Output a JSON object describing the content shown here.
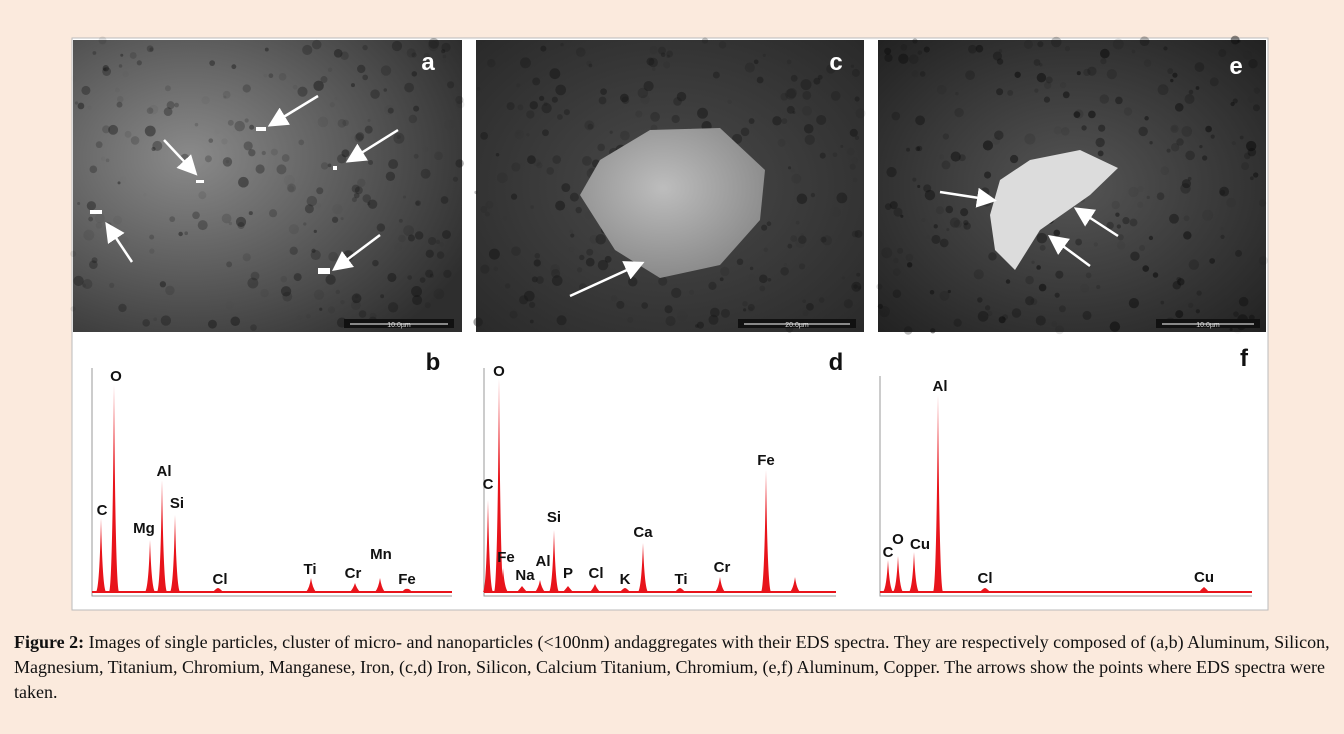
{
  "figure": {
    "panels": [
      {
        "image_label": "a",
        "scale_bar": "10.0µm",
        "spectrum_label": "b",
        "peaks": [
          "O",
          "C",
          "Mg",
          "Al",
          "Si",
          "Cl",
          "Ti",
          "Cr",
          "Mn",
          "Fe"
        ]
      },
      {
        "image_label": "c",
        "scale_bar": "20.0µm",
        "spectrum_label": "d",
        "peaks": [
          "O",
          "C",
          "Fe",
          "Na",
          "Al",
          "Si",
          "P",
          "Cl",
          "K",
          "Ca",
          "Ti",
          "Cr",
          "Fe"
        ]
      },
      {
        "image_label": "e",
        "scale_bar": "10.0µm",
        "spectrum_label": "f",
        "peaks": [
          "Al",
          "C",
          "O",
          "Cu",
          "Cl",
          "Cu"
        ]
      }
    ],
    "caption": {
      "label": "Figure 2:",
      "text": "Images of single particles, cluster of micro- and nanoparticles (<100nm) andaggregates with their EDS spectra. They are respectively composed of (a,b) Aluminum, Silicon, Magnesium, Titanium, Chromium, Manganese, Iron, (c,d) Iron, Silicon, Calcium Titanium, Chromium, (e,f) Aluminum, Copper. The arrows show the points where EDS spectra were taken."
    }
  }
}
